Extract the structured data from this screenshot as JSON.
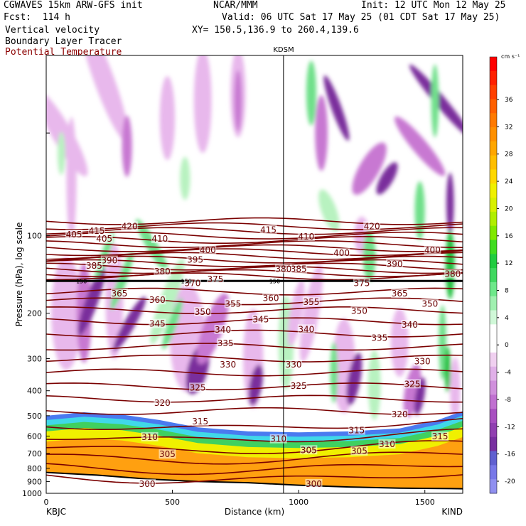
{
  "header": {
    "model": "CGWAVES 15km ARW-GFS init",
    "org": "NCAR/MMM",
    "init": "Init: 12 UTC Mon 12 May 25",
    "fcst": "Fcst:  114 h",
    "valid": "Valid: 06 UTC Sat 17 May 25 (01 CDT Sat 17 May 25)",
    "xy": "XY= 150.5,136.9 to 260.4,139.6",
    "field1": "Vertical velocity",
    "field2": "Boundary Layer Tracer",
    "field3": "Potential Temperature"
  },
  "colors": {
    "theta": "#7a0000",
    "theta_title": "#8b0000"
  },
  "chart_data": {
    "type": "heatmap",
    "ylabel": "Pressure (hPa), log scale",
    "xlabel": "Distance (km)",
    "yscale": "log",
    "xlim": [
      0,
      1650
    ],
    "ylim": [
      1000,
      20
    ],
    "x_ticks": [
      "0",
      "500",
      "1000",
      "1500"
    ],
    "y_ticks": [
      "100",
      "200",
      "300",
      "400",
      "500",
      "600",
      "700",
      "800",
      "900",
      "1000"
    ],
    "left_endpoint": "KBJC",
    "right_endpoint": "KIND",
    "midpoint_label": "KDSM",
    "midpoint_x_km": 940,
    "colorbar": {
      "unit": "cm s⁻¹",
      "ticks": [
        "36",
        "32",
        "28",
        "24",
        "20",
        "16",
        "12",
        "8",
        "4",
        "0",
        "-4",
        "-8",
        "-12",
        "-16",
        "-20"
      ],
      "colors": [
        "#ff0000",
        "#ff2000",
        "#ff4000",
        "#ff6000",
        "#ff7a00",
        "#ff9000",
        "#ffa600",
        "#ffbe00",
        "#ffd800",
        "#f0f000",
        "#d8f000",
        "#b0ee00",
        "#80e800",
        "#40dc20",
        "#20cc40",
        "#40d860",
        "#6ee88a",
        "#a0f0b0",
        "#d0f8d8",
        "#ffffff",
        "#ffffff",
        "#f0d0f0",
        "#e0b0e8",
        "#d090dc",
        "#c070d0",
        "#a850c0",
        "#9040b0",
        "#7830a0",
        "#6060d0",
        "#7878e8",
        "#9090f0"
      ]
    },
    "theta_labels": [
      {
        "label": "420",
        "x": 330,
        "p": 92
      },
      {
        "label": "420",
        "x": 1290,
        "p": 92
      },
      {
        "label": "415",
        "x": 200,
        "p": 96
      },
      {
        "label": "415",
        "x": 880,
        "p": 95
      },
      {
        "label": "410",
        "x": 450,
        "p": 103
      },
      {
        "label": "410",
        "x": 1030,
        "p": 101
      },
      {
        "label": "405",
        "x": 110,
        "p": 99
      },
      {
        "label": "405",
        "x": 230,
        "p": 103
      },
      {
        "label": "400",
        "x": 640,
        "p": 114
      },
      {
        "label": "400",
        "x": 1170,
        "p": 117
      },
      {
        "label": "400",
        "x": 1530,
        "p": 114
      },
      {
        "label": "395",
        "x": 590,
        "p": 124
      },
      {
        "label": "390",
        "x": 250,
        "p": 125
      },
      {
        "label": "390",
        "x": 1380,
        "p": 129
      },
      {
        "label": "385",
        "x": 190,
        "p": 131
      },
      {
        "label": "385",
        "x": 1000,
        "p": 135
      },
      {
        "label": "380",
        "x": 460,
        "p": 138
      },
      {
        "label": "380",
        "x": 940,
        "p": 135
      },
      {
        "label": "380",
        "x": 1610,
        "p": 141
      },
      {
        "label": "375",
        "x": 670,
        "p": 148
      },
      {
        "label": "375",
        "x": 1250,
        "p": 153
      },
      {
        "label": "370",
        "x": 580,
        "p": 153
      },
      {
        "label": "365",
        "x": 290,
        "p": 168
      },
      {
        "label": "365",
        "x": 1400,
        "p": 168
      },
      {
        "label": "360",
        "x": 440,
        "p": 178
      },
      {
        "label": "360",
        "x": 890,
        "p": 175
      },
      {
        "label": "355",
        "x": 740,
        "p": 184
      },
      {
        "label": "355",
        "x": 1050,
        "p": 181
      },
      {
        "label": "350",
        "x": 620,
        "p": 198
      },
      {
        "label": "350",
        "x": 1240,
        "p": 196
      },
      {
        "label": "350",
        "x": 1520,
        "p": 184
      },
      {
        "label": "345",
        "x": 440,
        "p": 220
      },
      {
        "label": "345",
        "x": 850,
        "p": 212
      },
      {
        "label": "340",
        "x": 700,
        "p": 232
      },
      {
        "label": "340",
        "x": 1030,
        "p": 231
      },
      {
        "label": "340",
        "x": 1440,
        "p": 222
      },
      {
        "label": "335",
        "x": 710,
        "p": 262
      },
      {
        "label": "335",
        "x": 1320,
        "p": 250
      },
      {
        "label": "330",
        "x": 720,
        "p": 317
      },
      {
        "label": "330",
        "x": 980,
        "p": 317
      },
      {
        "label": "330",
        "x": 1490,
        "p": 308
      },
      {
        "label": "325",
        "x": 600,
        "p": 389
      },
      {
        "label": "325",
        "x": 1000,
        "p": 383
      },
      {
        "label": "325",
        "x": 1450,
        "p": 377
      },
      {
        "label": "320",
        "x": 460,
        "p": 446
      },
      {
        "label": "320",
        "x": 1400,
        "p": 494
      },
      {
        "label": "315",
        "x": 610,
        "p": 527
      },
      {
        "label": "315",
        "x": 1230,
        "p": 570
      },
      {
        "label": "315",
        "x": 1560,
        "p": 602
      },
      {
        "label": "310",
        "x": 410,
        "p": 605
      },
      {
        "label": "310",
        "x": 920,
        "p": 616
      },
      {
        "label": "310",
        "x": 1350,
        "p": 645
      },
      {
        "label": "305",
        "x": 480,
        "p": 706
      },
      {
        "label": "305",
        "x": 1040,
        "p": 680
      },
      {
        "label": "305",
        "x": 1240,
        "p": 686
      },
      {
        "label": "300",
        "x": 400,
        "p": 920
      },
      {
        "label": "300",
        "x": 1060,
        "p": 920
      }
    ],
    "tropopause_labels": [
      {
        "label": "150",
        "x": 140,
        "p": 150
      },
      {
        "label": "150",
        "x": 555,
        "p": 150
      },
      {
        "label": "150",
        "x": 905,
        "p": 150
      }
    ]
  }
}
